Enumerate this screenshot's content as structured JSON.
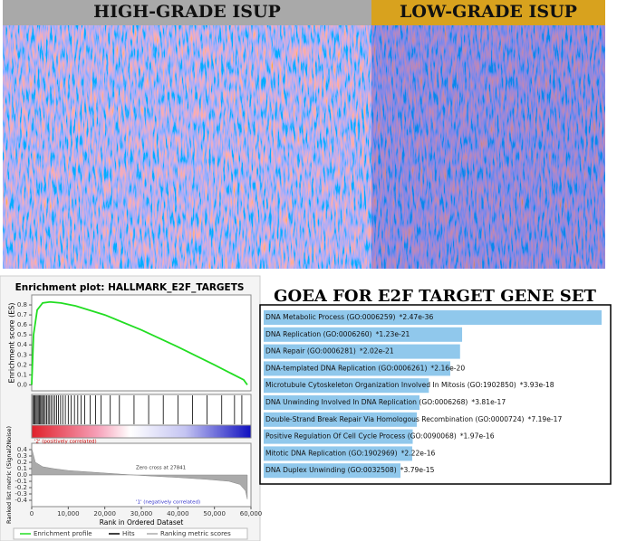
{
  "chart_data": [
    {
      "type": "heatmap",
      "groups": [
        {
          "name": "HIGH-GRADE ISUP",
          "color": "#a9a9a9"
        },
        {
          "name": "LOW-GRADE ISUP",
          "color": "#d8a21e"
        }
      ]
    },
    {
      "type": "gsea",
      "title": "Enrichment plot: HALLMARK_E2F_TARGETS",
      "ylabel": "Enrichment score (ES)",
      "xlabel": "Rank in Ordered Dataset",
      "xlim": [
        0,
        60000
      ],
      "xticks": [
        0,
        {
          "value": 10000,
          "label": "10,000"
        },
        {
          "value": 20000,
          "label": "20,000"
        },
        {
          "value": 30000,
          "label": "30,000"
        },
        {
          "value": 40000,
          "label": "40,000"
        },
        {
          "value": 50000,
          "label": "50,000"
        },
        {
          "value": 60000,
          "label": "60,000"
        }
      ],
      "ylim": [
        -0.06,
        0.9
      ],
      "yticks": [
        {
          "value": 0,
          "label": "0.0"
        },
        0.1,
        0.2,
        0.3,
        0.4,
        0.5,
        0.6,
        0.7,
        0.8
      ],
      "x": [
        0,
        500,
        1500,
        3000,
        5000,
        8000,
        12000,
        20000,
        30000,
        40000,
        50000,
        58000,
        59000
      ],
      "series": [
        {
          "name": "Enrichment profile",
          "color": "#22dd22",
          "values": [
            0,
            0.5,
            0.75,
            0.82,
            0.83,
            0.82,
            0.79,
            0.7,
            0.55,
            0.38,
            0.2,
            0.05,
            0
          ]
        }
      ],
      "hits": {
        "name": "Hits",
        "color": "#000000",
        "x": [
          300,
          600,
          900,
          1200,
          1500,
          1800,
          2100,
          2400,
          2700,
          3000,
          3300,
          3700,
          4100,
          4500,
          4900,
          5300,
          5800,
          6300,
          6800,
          7300,
          7900,
          8500,
          9200,
          10000,
          10800,
          11700,
          12600,
          13500,
          14500,
          16000,
          17500,
          19000,
          21500,
          24000,
          28000,
          32000,
          36000,
          40000,
          44000,
          48000,
          52000,
          55500,
          57500
        ]
      },
      "ranking": {
        "name": "Ranking metric scores",
        "color": "#aaaaaa",
        "ylabel": "Ranked list metric (Signal2Noise)",
        "ylim": [
          -0.5,
          0.5
        ],
        "yticks": [
          0.4,
          0.3,
          0.2,
          0.1,
          {
            "value": 0,
            "label": "0.0"
          },
          -0.1,
          -0.2,
          -0.3,
          -0.4
        ],
        "x": [
          0,
          1000,
          3000,
          6000,
          10000,
          15000,
          20000,
          25000,
          27841,
          32000,
          40000,
          48000,
          54000,
          57000,
          58500,
          59000
        ],
        "values": [
          0.42,
          0.2,
          0.13,
          0.1,
          0.07,
          0.05,
          0.03,
          0.01,
          0,
          -0.015,
          -0.04,
          -0.07,
          -0.1,
          -0.15,
          -0.25,
          -0.38
        ]
      },
      "annotations": {
        "positive": "'2' (positively correlated)",
        "negative": "'1' (negatively correlated)",
        "zero": "Zero cross at 27841"
      }
    },
    {
      "type": "bar",
      "title": "GOEA FOR E2F TARGET GENE SET",
      "log_scale": true,
      "color": "#90c8ec",
      "categories": [
        "DNA Metabolic Process (GO:0006259)",
        "DNA Replication (GO:0006260)",
        "DNA Repair (GO:0006281)",
        "DNA-templated DNA Replication (GO:0006261)",
        "Microtubule Cytoskeleton Organization Involved In Mitosis (GO:1902850)",
        "DNA Unwinding Involved In DNA Replication (GO:0006268)",
        "Double-Strand Break Repair Via Homologous Recombination (GO:0000724)",
        "Positive Regulation Of Cell Cycle Process (GO:0090068)",
        "Mitotic DNA Replication (GO:1902969)",
        "DNA Duplex Unwinding (GO:0032508)"
      ],
      "values": [
        2.47e-36,
        1.23e-21,
        2.02e-21,
        2.16e-20,
        3.93e-18,
        3.81e-17,
        7.19e-17,
        1.97e-16,
        2.22e-16,
        3.79e-15
      ],
      "value_labels": [
        "*2.47e-36",
        "*1.23e-21",
        "*2.02e-21",
        "*2.16e-20",
        "*3.93e-18",
        "*3.81e-17",
        "*7.19e-17",
        "*1.97e-16",
        "*2.22e-16",
        "*3.79e-15"
      ]
    }
  ]
}
